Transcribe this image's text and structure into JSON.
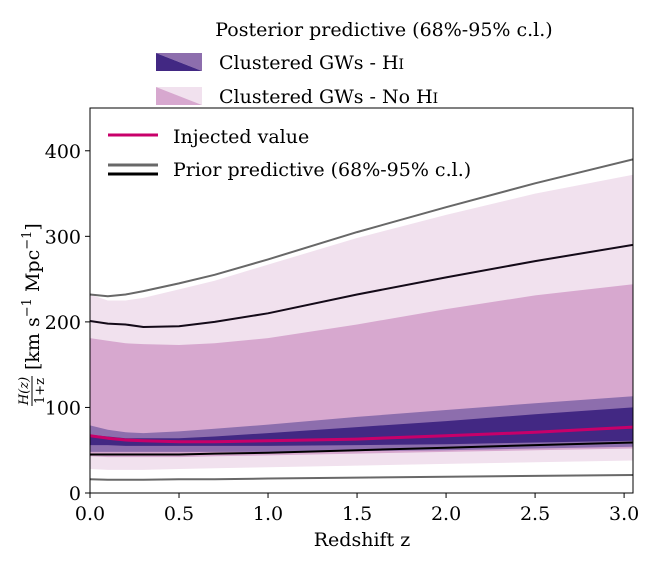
{
  "chart_data": {
    "type": "area",
    "title": "",
    "xlabel": "Redshift z",
    "ylabel": "H(z)/(1+z) [km s^-1 Mpc^-1]",
    "ylabel_parts": {
      "frac_num": "H(z)",
      "frac_den": "1+z",
      "units_open": "[km s",
      "exp1": "−1",
      "units_mid": "Mpc",
      "exp2": "−1",
      "units_close": "]"
    },
    "xlim": [
      0.0,
      3.05
    ],
    "ylim": [
      0,
      450
    ],
    "xticks": [
      0.0,
      0.5,
      1.0,
      1.5,
      2.0,
      2.5,
      3.0
    ],
    "xtick_labels": [
      "0.0",
      "0.5",
      "1.0",
      "1.5",
      "2.0",
      "2.5",
      "3.0"
    ],
    "yticks": [
      0,
      100,
      200,
      300,
      400
    ],
    "ytick_labels": [
      "0",
      "100",
      "200",
      "300",
      "400"
    ],
    "grid": false,
    "x": [
      0.0,
      0.1,
      0.2,
      0.3,
      0.5,
      0.7,
      1.0,
      1.5,
      2.0,
      2.5,
      3.05
    ],
    "bands": [
      {
        "name": "nohi-95",
        "group": "Clustered GWs - No HI",
        "cl": "95%",
        "color": "#f1e1ee",
        "upper": [
          232,
          225,
          225,
          228,
          238,
          248,
          267,
          298,
          325,
          350,
          372
        ],
        "lower": [
          28,
          27,
          27,
          27,
          28,
          29,
          30,
          32,
          34,
          36,
          38
        ]
      },
      {
        "name": "nohi-68",
        "group": "Clustered GWs - No HI",
        "cl": "68%",
        "color": "#d7a8cf",
        "upper": [
          181,
          178,
          175,
          174,
          173,
          175,
          181,
          197,
          215,
          231,
          244
        ],
        "lower": [
          43,
          42,
          42,
          42,
          42,
          43,
          44,
          46,
          48,
          50,
          52
        ]
      },
      {
        "name": "hi-95",
        "group": "Clustered GWs - HI",
        "cl": "95%",
        "color": "#8d6ead",
        "upper": [
          79,
          74,
          71,
          70,
          72,
          75,
          80,
          89,
          97,
          105,
          113
        ],
        "lower": [
          48,
          48,
          48,
          48,
          48,
          48,
          48,
          49,
          50,
          52,
          54
        ]
      },
      {
        "name": "hi-68",
        "group": "Clustered GWs - HI",
        "cl": "68%",
        "color": "#422883",
        "upper": [
          68,
          66,
          64,
          64,
          64,
          66,
          70,
          77,
          84,
          92,
          100
        ],
        "lower": [
          56,
          56,
          55,
          55,
          55,
          55,
          55,
          56,
          57,
          59,
          61
        ]
      }
    ],
    "series": [
      {
        "name": "Injected value",
        "color": "#c8006a",
        "width": 3,
        "values": [
          67,
          64,
          62,
          61,
          60,
          60,
          61,
          63,
          67,
          71,
          77
        ]
      },
      {
        "name": "prior-95-upper",
        "group": "Prior predictive",
        "color": "#686868",
        "width": 2,
        "values": [
          232,
          230,
          232,
          236,
          245,
          255,
          273,
          305,
          334,
          362,
          390
        ]
      },
      {
        "name": "prior-95-lower",
        "group": "Prior predictive",
        "color": "#686868",
        "width": 2,
        "values": [
          16,
          15.5,
          15.5,
          15.5,
          16,
          16,
          17,
          18,
          19,
          20,
          21
        ]
      },
      {
        "name": "prior-68-upper",
        "group": "Prior predictive",
        "color": "#140a18",
        "width": 2,
        "values": [
          201,
          198,
          197,
          194,
          195,
          200,
          210,
          232,
          252,
          271,
          290
        ]
      },
      {
        "name": "prior-68-lower",
        "group": "Prior predictive",
        "color": "#000000",
        "width": 2,
        "values": [
          45,
          45,
          45,
          45,
          45,
          46,
          47,
          50,
          53,
          56,
          59
        ]
      }
    ],
    "legend_outside": {
      "placement": "top",
      "title": "Posterior predictive (68%-95% c.l.)",
      "entries": [
        {
          "label_main": "Clustered GWs - H",
          "label_sc": "I",
          "dark": "#422883",
          "light": "#8d6ead"
        },
        {
          "label_main": "Clustered GWs - No H",
          "label_sc": "I",
          "dark": "#d7a8cf",
          "light": "#f1e1ee"
        }
      ]
    },
    "legend_inside": {
      "placement": "top-left",
      "entries": [
        {
          "label": "Injected value",
          "style": "single",
          "color": "#c8006a"
        },
        {
          "label": "Prior predictive (68%-95% c.l.)",
          "style": "double",
          "color1": "#686868",
          "color2": "#000000"
        }
      ]
    }
  }
}
